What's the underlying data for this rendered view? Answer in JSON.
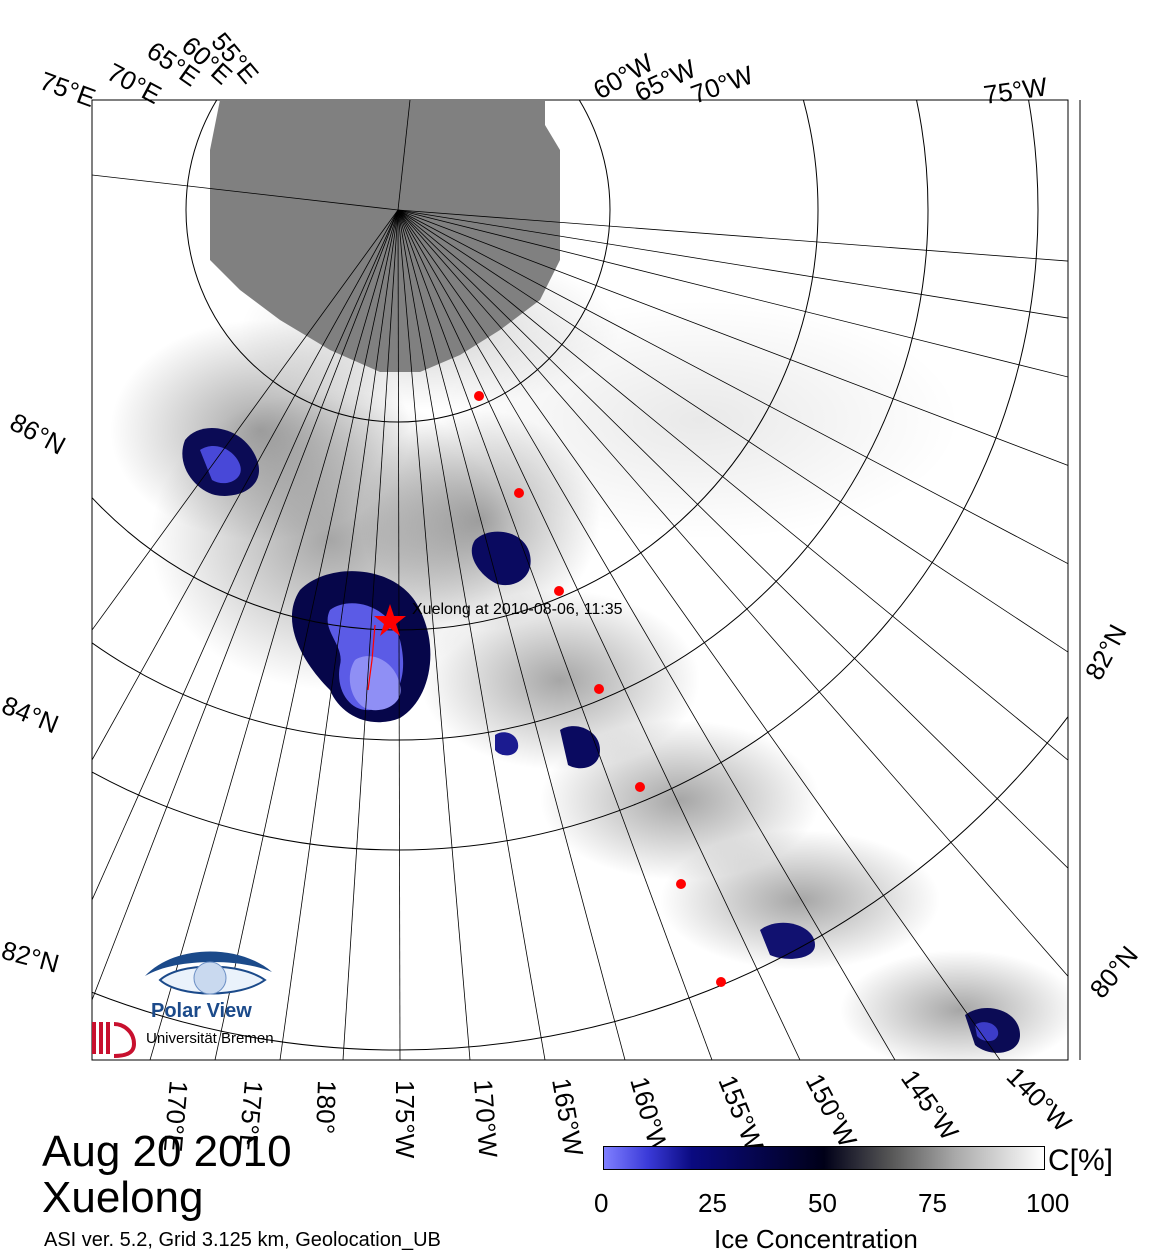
{
  "title": {
    "date": "Aug 20 2010",
    "ship": "Xuelong"
  },
  "info_line": "ASI ver. 5.2,  Grid 3.125 km, Geolocation_UB",
  "track_label": "Xuelong at 2010-08-06, 11:35",
  "longitude_labels_top": [
    "75°E",
    "70°E",
    "65°E",
    "60°E",
    "55°E",
    "60°W",
    "65°W",
    "70°W",
    "75°W"
  ],
  "longitude_labels_bottom": [
    "170°E",
    "175°E",
    "180°",
    "175°W",
    "170°W",
    "165°W",
    "160°W",
    "155°W",
    "150°W",
    "145°W",
    "140°W"
  ],
  "latitude_labels_left": [
    "86°N",
    "84°N",
    "82°N"
  ],
  "latitude_labels_right": [
    "82°N",
    "80°N"
  ],
  "colorbar": {
    "ticks": [
      "0",
      "25",
      "50",
      "75",
      "100"
    ],
    "unit": "C[%]",
    "label": "Ice Concentration",
    "colors": [
      "#7f7fff",
      "#0a0a80",
      "#000018",
      "#888888",
      "#ffffff"
    ]
  },
  "logo": {
    "name": "Polar View",
    "institution": "Universität Bremen"
  },
  "colors": {
    "pole_hole": "#808080",
    "track": "#ff0000",
    "ice_low": "#4444dd"
  }
}
